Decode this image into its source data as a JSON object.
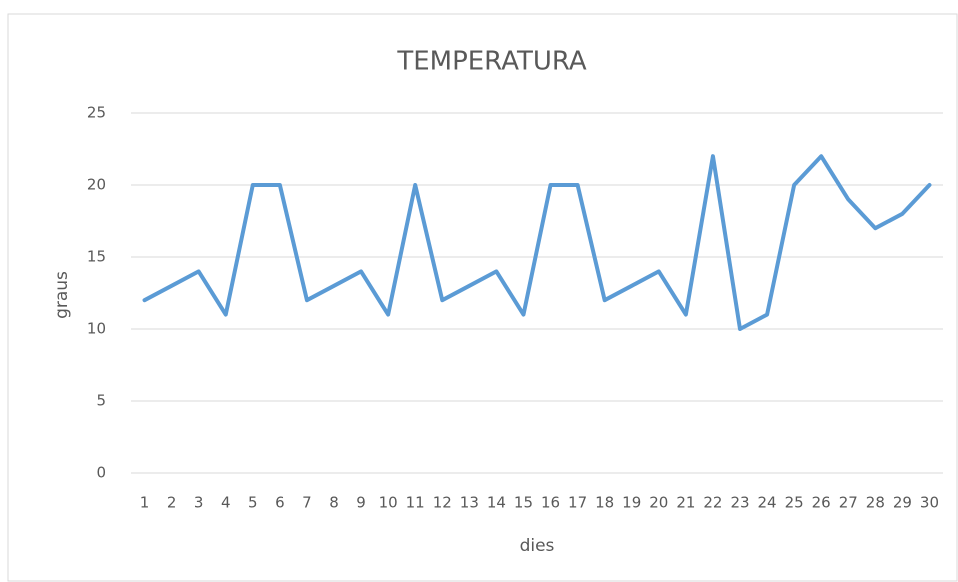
{
  "chart_data": {
    "type": "line",
    "title": "TEMPERATURA",
    "x_label": "dies",
    "y_label": "graus",
    "categories": [
      "1",
      "2",
      "3",
      "4",
      "5",
      "6",
      "7",
      "8",
      "9",
      "10",
      "11",
      "12",
      "13",
      "14",
      "15",
      "16",
      "17",
      "18",
      "19",
      "20",
      "21",
      "22",
      "23",
      "24",
      "25",
      "26",
      "27",
      "28",
      "29",
      "30"
    ],
    "series": [
      {
        "name": "graus",
        "color": "#5b9bd5",
        "values": [
          12,
          13,
          14,
          11,
          20,
          20,
          12,
          13,
          14,
          11,
          20,
          12,
          13,
          14,
          11,
          20,
          20,
          12,
          13,
          14,
          11,
          22,
          10,
          11,
          20,
          22,
          19,
          17,
          18,
          20
        ]
      }
    ],
    "ylim": [
      0,
      25
    ],
    "yticks": [
      0,
      5,
      10,
      15,
      20,
      25
    ],
    "grid": true
  }
}
